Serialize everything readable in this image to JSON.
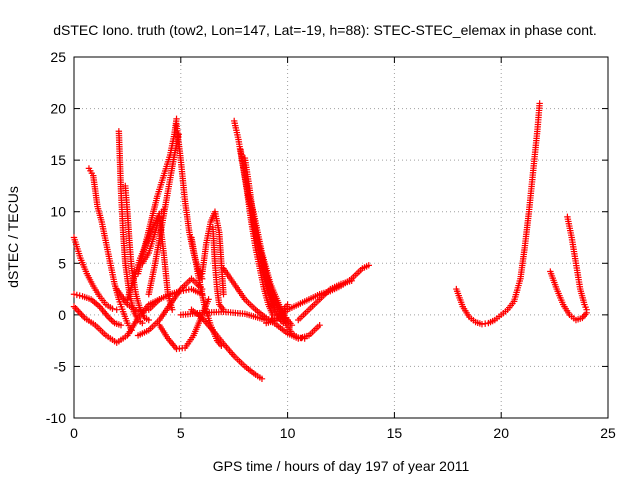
{
  "chart_data": {
    "type": "scatter",
    "title": "dSTEC Iono. truth (tow2, Lon=147, Lat=-19, h=88): STEC-STEC_elemax in phase cont.",
    "xlabel": "GPS time / hours of day 197 of year 2011",
    "ylabel": "dSTEC  / TECUs",
    "xlim": [
      0,
      25
    ],
    "ylim": [
      -10,
      25
    ],
    "xticks": [
      0,
      5,
      10,
      15,
      20,
      25
    ],
    "yticks": [
      -10,
      -5,
      0,
      5,
      10,
      15,
      20,
      25
    ],
    "xtick_labels": [
      "0",
      "5",
      "10",
      "15",
      "20",
      "25"
    ],
    "ytick_labels": [
      "-10",
      "-5",
      "0",
      "5",
      "10",
      "15",
      "20",
      "25"
    ],
    "grid": true,
    "marker": "plus",
    "color": "#ff0000",
    "series": [
      {
        "x": [
          0.0,
          0.3,
          0.6,
          0.9,
          1.2,
          1.5,
          1.8,
          2.0
        ],
        "y": [
          7.5,
          5.5,
          4.0,
          2.8,
          1.8,
          1.0,
          0.6,
          0.5
        ]
      },
      {
        "x": [
          0.0,
          0.4,
          0.8,
          1.2,
          1.6,
          1.9,
          2.2
        ],
        "y": [
          2.0,
          1.8,
          1.5,
          0.8,
          -0.2,
          -0.8,
          -1.0
        ]
      },
      {
        "x": [
          0.7,
          0.9,
          1.1,
          1.3,
          1.5,
          1.7,
          1.9,
          2.1,
          2.3,
          2.5,
          2.7
        ],
        "y": [
          14.2,
          13.5,
          10.5,
          9.0,
          7.0,
          5.0,
          3.0,
          1.5,
          0.3,
          -0.8,
          -1.5
        ]
      },
      {
        "x": [
          0.0,
          0.5,
          1.0,
          1.5,
          2.0,
          2.5,
          3.0,
          3.5,
          4.0
        ],
        "y": [
          0.8,
          -0.3,
          -1.0,
          -2.0,
          -2.7,
          -2.0,
          -0.3,
          1.0,
          1.5
        ]
      },
      {
        "x": [
          2.1,
          2.2,
          2.3,
          2.4,
          2.6,
          2.8,
          3.0,
          3.2
        ],
        "y": [
          17.8,
          12.0,
          8.0,
          5.0,
          2.0,
          0.3,
          -0.5,
          -0.8
        ]
      },
      {
        "x": [
          2.4,
          2.5,
          2.6,
          2.7,
          2.9,
          3.1,
          3.3,
          3.5
        ],
        "y": [
          12.5,
          10.0,
          7.0,
          4.5,
          2.0,
          0.5,
          -0.3,
          -0.5
        ]
      },
      {
        "x": [
          2.0,
          2.5,
          3.0,
          3.5,
          4.0,
          4.5,
          5.0,
          5.5,
          6.0
        ],
        "y": [
          2.5,
          1.0,
          0.3,
          0.5,
          1.5,
          2.0,
          2.3,
          2.5,
          2.0
        ]
      },
      {
        "x": [
          3.0,
          3.3,
          3.6,
          3.9,
          4.2,
          4.5,
          4.7,
          4.8
        ],
        "y": [
          4.0,
          6.5,
          9.0,
          11.5,
          13.5,
          15.5,
          17.5,
          19.0
        ]
      },
      {
        "x": [
          2.5,
          2.8,
          3.1,
          3.4,
          3.7,
          4.0,
          4.2
        ],
        "y": [
          1.5,
          3.5,
          5.5,
          7.0,
          8.5,
          9.8,
          10.2
        ]
      },
      {
        "x": [
          3.5,
          3.8,
          4.1,
          4.4,
          4.7,
          4.9
        ],
        "y": [
          2.0,
          5.0,
          8.5,
          12.0,
          15.5,
          17.5
        ]
      },
      {
        "x": [
          3.2,
          3.5,
          3.8,
          4.0,
          4.2,
          4.4,
          4.6
        ],
        "y": [
          5.0,
          6.0,
          8.0,
          9.5,
          6.0,
          2.0,
          0.5
        ]
      },
      {
        "x": [
          4.8,
          5.0,
          5.2,
          5.4,
          5.6,
          5.8,
          6.0
        ],
        "y": [
          18.5,
          15.0,
          11.0,
          8.0,
          6.0,
          4.5,
          3.5
        ]
      },
      {
        "x": [
          3.0,
          3.5,
          4.0,
          4.5,
          5.0,
          5.5,
          6.0
        ],
        "y": [
          -2.0,
          -1.5,
          -0.5,
          1.0,
          2.5,
          3.5,
          2.5
        ]
      },
      {
        "x": [
          4.0,
          4.4,
          4.8,
          5.2,
          5.6,
          6.0,
          6.3
        ],
        "y": [
          -1.0,
          -2.3,
          -3.3,
          -3.2,
          -2.0,
          0.0,
          1.5
        ]
      },
      {
        "x": [
          5.5,
          5.8,
          6.1,
          6.4,
          6.7,
          6.9
        ],
        "y": [
          7.5,
          4.0,
          1.0,
          -1.0,
          -2.5,
          -3.0
        ]
      },
      {
        "x": [
          5.5,
          6.0,
          6.5,
          7.0,
          7.5,
          8.0,
          8.5,
          8.8
        ],
        "y": [
          0.5,
          -0.3,
          -1.5,
          -2.8,
          -4.0,
          -5.0,
          -5.8,
          -6.2
        ]
      },
      {
        "x": [
          6.0,
          6.2,
          6.4,
          6.6,
          6.8,
          7.0
        ],
        "y": [
          4.0,
          7.0,
          9.0,
          10.0,
          8.0,
          2.0
        ]
      },
      {
        "x": [
          6.5,
          6.6,
          6.7,
          6.8,
          7.0
        ],
        "y": [
          8.5,
          5.0,
          2.5,
          1.0,
          0.5
        ]
      },
      {
        "x": [
          7.5,
          7.7,
          7.9,
          8.1,
          8.3,
          8.5,
          8.7,
          8.9,
          9.1,
          9.3
        ],
        "y": [
          18.8,
          17.0,
          14.5,
          12.0,
          9.0,
          6.5,
          4.5,
          2.5,
          1.0,
          0.0
        ]
      },
      {
        "x": [
          7.8,
          8.0,
          8.2,
          8.4,
          8.6,
          8.8,
          9.0,
          9.2,
          9.4,
          9.6,
          9.8
        ],
        "y": [
          16.0,
          13.5,
          11.0,
          8.5,
          6.5,
          4.5,
          3.0,
          1.5,
          0.5,
          -0.3,
          -0.8
        ]
      },
      {
        "x": [
          8.0,
          8.2,
          8.4,
          8.6,
          8.8,
          9.0,
          9.2,
          9.4,
          9.6,
          9.8,
          10.0
        ],
        "y": [
          15.2,
          12.5,
          9.5,
          7.0,
          5.0,
          3.5,
          2.0,
          1.0,
          0.3,
          -0.2,
          -0.5
        ]
      },
      {
        "x": [
          8.2,
          8.4,
          8.6,
          8.8,
          9.0,
          9.2,
          9.4,
          9.6,
          9.8,
          10.0,
          10.2
        ],
        "y": [
          11.5,
          10.0,
          8.0,
          6.0,
          4.5,
          3.0,
          2.0,
          1.0,
          0.2,
          -0.5,
          -1.0
        ]
      },
      {
        "x": [
          8.4,
          8.7,
          9.0,
          9.3,
          9.6,
          9.9,
          10.2,
          10.5,
          10.8
        ],
        "y": [
          9.0,
          6.5,
          4.0,
          2.0,
          0.5,
          -0.8,
          -1.8,
          -2.2,
          -2.3
        ]
      },
      {
        "x": [
          7.0,
          7.5,
          8.0,
          8.5,
          9.0,
          9.5,
          10.0,
          10.5,
          11.0,
          11.5
        ],
        "y": [
          4.5,
          3.0,
          1.5,
          0.5,
          -0.3,
          -1.0,
          -1.8,
          -2.3,
          -2.0,
          -1.0
        ]
      },
      {
        "x": [
          5.0,
          6.0,
          7.0,
          8.0,
          9.0,
          9.5,
          10.0
        ],
        "y": [
          0.0,
          0.2,
          0.3,
          0.1,
          -0.5,
          -0.3,
          1.0
        ]
      },
      {
        "x": [
          9.0,
          9.5,
          10.0,
          10.5,
          11.0,
          11.5,
          12.0,
          12.5,
          13.0,
          13.5,
          13.8
        ],
        "y": [
          -0.8,
          -0.5,
          0.5,
          1.0,
          1.5,
          2.0,
          2.3,
          2.8,
          3.5,
          4.5,
          4.8
        ]
      },
      {
        "x": [
          10.5,
          11.0,
          11.5,
          12.0,
          12.5,
          13.0
        ],
        "y": [
          -0.5,
          0.5,
          1.5,
          2.5,
          3.0,
          3.3
        ]
      },
      {
        "x": [
          17.9,
          18.2,
          18.5,
          18.8,
          19.1,
          19.4,
          19.7,
          20.0,
          20.3,
          20.6
        ],
        "y": [
          2.5,
          0.8,
          -0.2,
          -0.7,
          -0.9,
          -0.8,
          -0.5,
          0.0,
          0.5,
          1.3
        ]
      },
      {
        "x": [
          20.6,
          20.9,
          21.1,
          21.3,
          21.5,
          21.7,
          21.8
        ],
        "y": [
          1.3,
          3.5,
          6.5,
          10.0,
          14.0,
          18.0,
          20.5
        ]
      },
      {
        "x": [
          22.3,
          22.6,
          22.9,
          23.2,
          23.5,
          23.8,
          24.0
        ],
        "y": [
          4.2,
          2.5,
          1.0,
          0.0,
          -0.5,
          -0.3,
          0.2
        ]
      },
      {
        "x": [
          23.1,
          23.3,
          23.5,
          23.7,
          23.9,
          24.0
        ],
        "y": [
          9.5,
          7.5,
          5.0,
          2.5,
          1.0,
          0.5
        ]
      }
    ]
  }
}
